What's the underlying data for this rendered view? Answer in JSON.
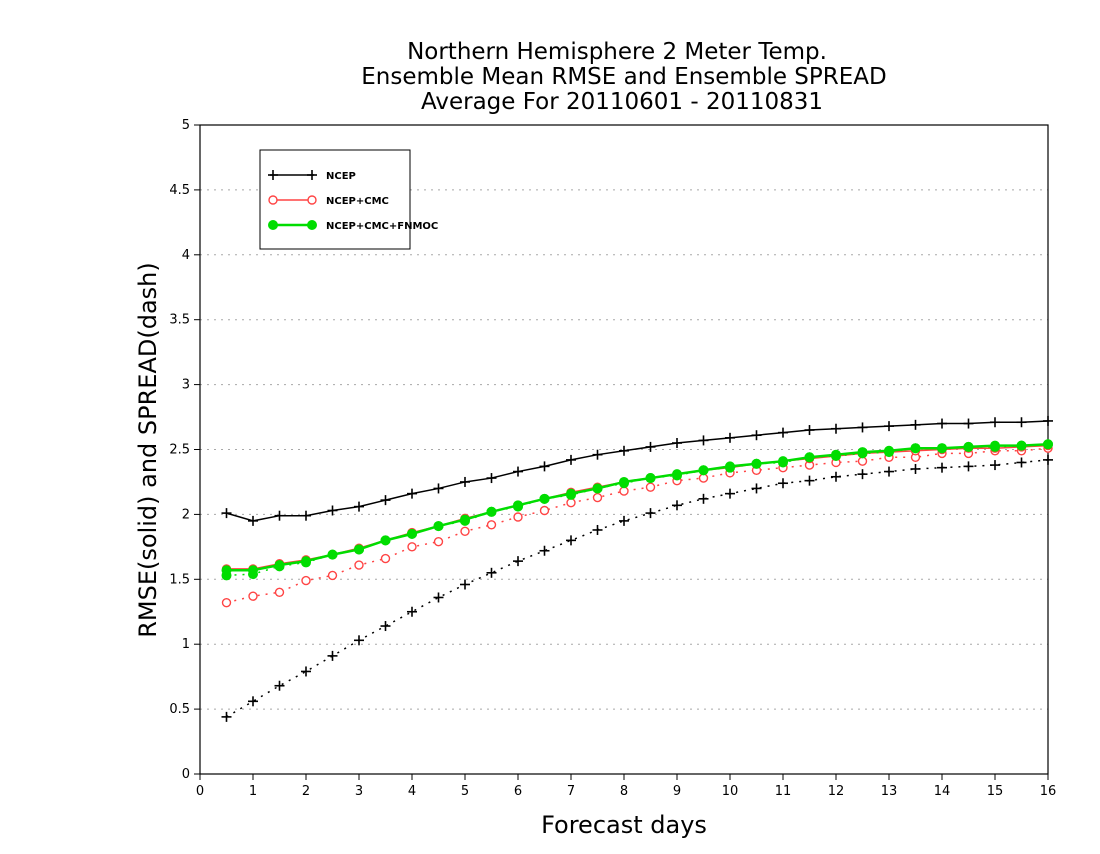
{
  "chart_data": {
    "type": "line",
    "title": [
      "Northern Hemisphere 2 Meter Temp.",
      "Ensemble Mean RMSE and Ensemble SPREAD",
      "Average For 20110601 - 20110831"
    ],
    "xlabel": "Forecast days",
    "ylabel": "RMSE(solid) and SPREAD(dash)",
    "xlim": [
      0,
      16
    ],
    "ylim": [
      0,
      5
    ],
    "x_ticks": [
      "0",
      "1",
      "2",
      "3",
      "4",
      "5",
      "6",
      "7",
      "8",
      "9",
      "10",
      "11",
      "12",
      "13",
      "14",
      "15",
      "16"
    ],
    "y_ticks": [
      "0",
      "0.5",
      "1",
      "1.5",
      "2",
      "2.5",
      "3",
      "3.5",
      "4",
      "4.5",
      "5"
    ],
    "y_grid": true,
    "legend_position": "top-left",
    "x": [
      0.5,
      1,
      1.5,
      2,
      2.5,
      3,
      3.5,
      4,
      4.5,
      5,
      5.5,
      6,
      6.5,
      7,
      7.5,
      8,
      8.5,
      9,
      9.5,
      10,
      10.5,
      11,
      11.5,
      12,
      12.5,
      13,
      13.5,
      14,
      14.5,
      15,
      15.5,
      16
    ],
    "series": [
      {
        "name": "NCEP",
        "color": "#000000",
        "marker": "plus",
        "rmse": [
          2.01,
          1.95,
          1.99,
          1.99,
          2.03,
          2.06,
          2.11,
          2.16,
          2.2,
          2.25,
          2.28,
          2.33,
          2.37,
          2.42,
          2.46,
          2.49,
          2.52,
          2.55,
          2.57,
          2.59,
          2.61,
          2.63,
          2.65,
          2.66,
          2.67,
          2.68,
          2.69,
          2.7,
          2.7,
          2.71,
          2.71,
          2.72
        ],
        "spread": [
          0.44,
          0.56,
          0.68,
          0.79,
          0.91,
          1.03,
          1.14,
          1.25,
          1.36,
          1.46,
          1.55,
          1.64,
          1.72,
          1.8,
          1.88,
          1.95,
          2.01,
          2.07,
          2.12,
          2.16,
          2.2,
          2.24,
          2.26,
          2.29,
          2.31,
          2.33,
          2.35,
          2.36,
          2.37,
          2.38,
          2.4,
          2.42
        ]
      },
      {
        "name": "NCEP+CMC",
        "color": "#ff4444",
        "marker": "open-circle",
        "rmse": [
          1.58,
          1.58,
          1.62,
          1.65,
          1.69,
          1.74,
          1.8,
          1.86,
          1.91,
          1.97,
          2.02,
          2.07,
          2.12,
          2.17,
          2.21,
          2.25,
          2.28,
          2.31,
          2.34,
          2.36,
          2.39,
          2.41,
          2.43,
          2.45,
          2.47,
          2.48,
          2.49,
          2.5,
          2.51,
          2.51,
          2.52,
          2.53
        ],
        "spread": [
          1.32,
          1.37,
          1.4,
          1.49,
          1.53,
          1.61,
          1.66,
          1.75,
          1.79,
          1.87,
          1.92,
          1.98,
          2.03,
          2.09,
          2.13,
          2.18,
          2.21,
          2.26,
          2.28,
          2.32,
          2.34,
          2.36,
          2.38,
          2.4,
          2.41,
          2.44,
          2.44,
          2.47,
          2.47,
          2.49,
          2.49,
          2.51
        ]
      },
      {
        "name": "NCEP+CMC+FNMOC",
        "color": "#00dd00",
        "marker": "filled-circle",
        "rmse": [
          1.57,
          1.57,
          1.61,
          1.64,
          1.69,
          1.73,
          1.8,
          1.85,
          1.91,
          1.96,
          2.02,
          2.07,
          2.12,
          2.16,
          2.2,
          2.25,
          2.28,
          2.31,
          2.34,
          2.37,
          2.39,
          2.41,
          2.44,
          2.46,
          2.48,
          2.49,
          2.51,
          2.51,
          2.52,
          2.53,
          2.53,
          2.54
        ],
        "spread": [
          1.53,
          1.54,
          1.6,
          1.63,
          1.69,
          1.73,
          1.8,
          1.85,
          1.91,
          1.95,
          2.02,
          2.06,
          2.12,
          2.15,
          2.2,
          2.24,
          2.28,
          2.3,
          2.34,
          2.36,
          2.39,
          2.4,
          2.44,
          2.45,
          2.47,
          2.48,
          2.51,
          2.51,
          2.52,
          2.52,
          2.53,
          2.54
        ]
      }
    ]
  }
}
